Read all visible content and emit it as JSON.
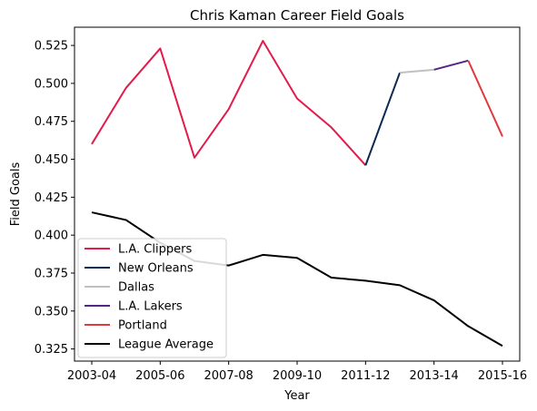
{
  "chart_data": {
    "type": "line",
    "title": "Chris Kaman Career Field Goals",
    "xlabel": "Year",
    "ylabel": "Field Goals",
    "x": [
      "2003-04",
      "2004-05",
      "2005-06",
      "2006-07",
      "2007-08",
      "2008-09",
      "2009-10",
      "2010-11",
      "2011-12",
      "2012-13",
      "2013-14",
      "2014-15",
      "2015-16"
    ],
    "x_ticks": [
      "2003-04",
      "2005-06",
      "2007-08",
      "2009-10",
      "2011-12",
      "2013-14",
      "2015-16"
    ],
    "y_ticks": [
      "0.325",
      "0.350",
      "0.375",
      "0.400",
      "0.425",
      "0.450",
      "0.475",
      "0.500",
      "0.525"
    ],
    "ylim": [
      0.317,
      0.537
    ],
    "grid": false,
    "legend_position": "lower-left",
    "series": [
      {
        "name": "L.A. Clippers",
        "color": "#e31b4c",
        "points": [
          {
            "x": "2003-04",
            "y": 0.46
          },
          {
            "x": "2004-05",
            "y": 0.497
          },
          {
            "x": "2005-06",
            "y": 0.523
          },
          {
            "x": "2006-07",
            "y": 0.451
          },
          {
            "x": "2007-08",
            "y": 0.483
          },
          {
            "x": "2008-09",
            "y": 0.528
          },
          {
            "x": "2009-10",
            "y": 0.49
          },
          {
            "x": "2010-11",
            "y": 0.471
          },
          {
            "x": "2011-12",
            "y": 0.446
          }
        ]
      },
      {
        "name": "New Orleans",
        "color": "#0c2a50",
        "points": [
          {
            "x": "2011-12",
            "y": 0.446
          },
          {
            "x": "2012-13",
            "y": 0.507
          }
        ]
      },
      {
        "name": "Dallas",
        "color": "#c0c0c0",
        "points": [
          {
            "x": "2012-13",
            "y": 0.507
          },
          {
            "x": "2013-14",
            "y": 0.509
          }
        ]
      },
      {
        "name": "L.A. Lakers",
        "color": "#552583",
        "points": [
          {
            "x": "2013-14",
            "y": 0.509
          },
          {
            "x": "2014-15",
            "y": 0.515
          }
        ]
      },
      {
        "name": "Portland",
        "color": "#e03a3e",
        "points": [
          {
            "x": "2014-15",
            "y": 0.515
          },
          {
            "x": "2015-16",
            "y": 0.465
          }
        ]
      },
      {
        "name": "League Average",
        "color": "#000000",
        "points": [
          {
            "x": "2003-04",
            "y": 0.415
          },
          {
            "x": "2004-05",
            "y": 0.41
          },
          {
            "x": "2005-06",
            "y": 0.395
          },
          {
            "x": "2006-07",
            "y": 0.383
          },
          {
            "x": "2007-08",
            "y": 0.38
          },
          {
            "x": "2008-09",
            "y": 0.387
          },
          {
            "x": "2009-10",
            "y": 0.385
          },
          {
            "x": "2010-11",
            "y": 0.372
          },
          {
            "x": "2011-12",
            "y": 0.37
          },
          {
            "x": "2012-13",
            "y": 0.367
          },
          {
            "x": "2013-14",
            "y": 0.357
          },
          {
            "x": "2014-15",
            "y": 0.34
          },
          {
            "x": "2015-16",
            "y": 0.327
          }
        ]
      }
    ]
  }
}
